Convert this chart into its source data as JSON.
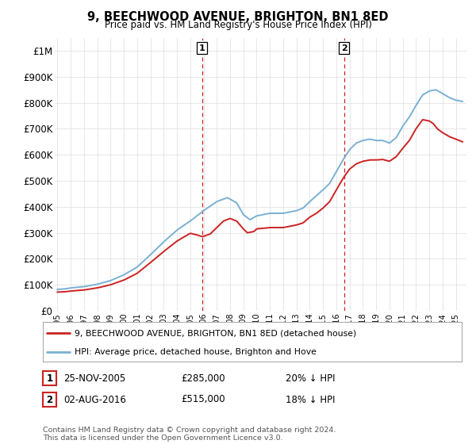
{
  "title": "9, BEECHWOOD AVENUE, BRIGHTON, BN1 8ED",
  "subtitle": "Price paid vs. HM Land Registry's House Price Index (HPI)",
  "ylabel_ticks": [
    "£0",
    "£100K",
    "£200K",
    "£300K",
    "£400K",
    "£500K",
    "£600K",
    "£700K",
    "£800K",
    "£900K",
    "£1M"
  ],
  "ytick_values": [
    0,
    100000,
    200000,
    300000,
    400000,
    500000,
    600000,
    700000,
    800000,
    900000,
    1000000
  ],
  "ylim": [
    0,
    1050000
  ],
  "xlim_start": 1994.8,
  "xlim_end": 2025.8,
  "hpi_color": "#7ab0d4",
  "price_color": "#cc2222",
  "marker1_x": 2005.9,
  "marker2_x": 2016.58,
  "marker1_label": "1",
  "marker2_label": "2",
  "legend_line1": "9, BEECHWOOD AVENUE, BRIGHTON, BN1 8ED (detached house)",
  "legend_line2": "HPI: Average price, detached house, Brighton and Hove",
  "ann1_date": "25-NOV-2005",
  "ann1_price": "£285,000",
  "ann1_hpi": "20% ↓ HPI",
  "ann2_date": "02-AUG-2016",
  "ann2_price": "£515,000",
  "ann2_hpi": "18% ↓ HPI",
  "footnote": "Contains HM Land Registry data © Crown copyright and database right 2024.\nThis data is licensed under the Open Government Licence v3.0.",
  "background_color": "#ffffff",
  "grid_color": "#dddddd",
  "vline_color": "#cc2222"
}
